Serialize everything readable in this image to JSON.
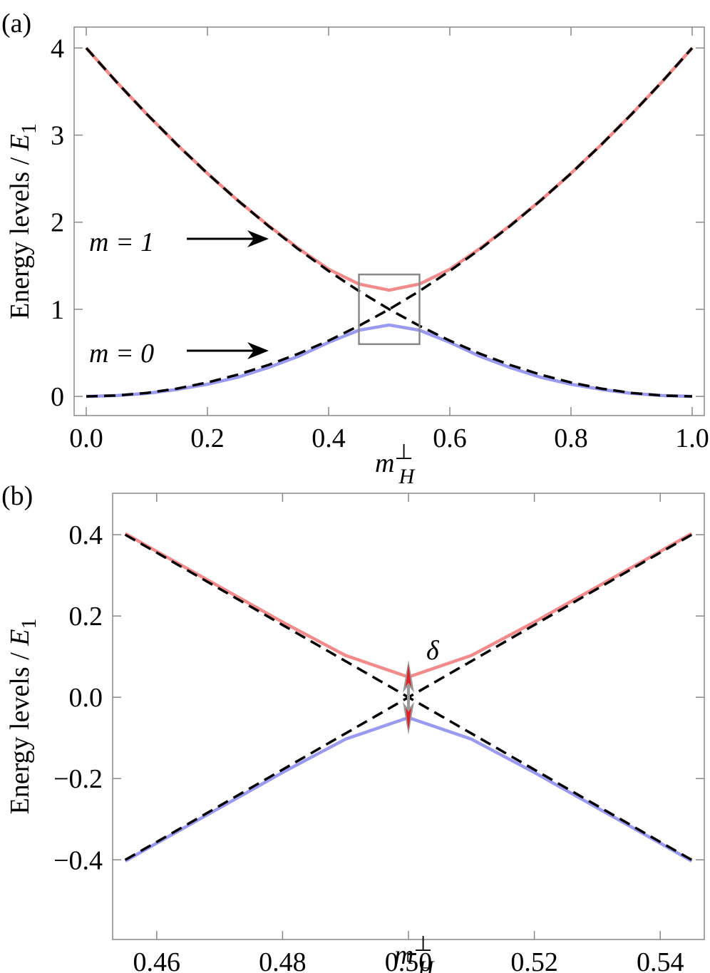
{
  "chart_data": [
    {
      "type": "line",
      "label": "(a)",
      "xlabel": {
        "main": "m",
        "sub": "H",
        "sup": "⊥"
      },
      "ylabel": {
        "main": "Energy levels / ",
        "var": "E",
        "sub": "1"
      },
      "x": [
        0,
        0.05,
        0.1,
        0.15,
        0.2,
        0.25,
        0.3,
        0.35,
        0.4,
        0.45,
        0.5,
        0.55,
        0.6,
        0.65,
        0.7,
        0.75,
        0.8,
        0.85,
        0.9,
        0.95,
        1
      ],
      "series": [
        {
          "color": "#f28b8b",
          "values": [
            4,
            3.61,
            3.24,
            2.89,
            2.56,
            2.25,
            1.965,
            1.7,
            1.46,
            1.29,
            1.22,
            1.29,
            1.46,
            1.7,
            1.965,
            2.25,
            2.56,
            2.89,
            3.24,
            3.61,
            4
          ]
        },
        {
          "color": "#9a9af0",
          "values": [
            0,
            0.01,
            0.035,
            0.08,
            0.14,
            0.22,
            0.33,
            0.46,
            0.62,
            0.76,
            0.82,
            0.76,
            0.62,
            0.46,
            0.33,
            0.22,
            0.14,
            0.08,
            0.035,
            0.01,
            0
          ]
        },
        {
          "color": "#000000",
          "dash": true,
          "values": [
            4,
            3.61,
            3.24,
            2.89,
            2.56,
            2.25,
            1.96,
            1.69,
            1.44,
            1.21,
            1,
            0.81,
            0.64,
            0.49,
            0.36,
            0.25,
            0.16,
            0.09,
            0.04,
            0.01,
            0
          ]
        },
        {
          "color": "#000000",
          "dash": true,
          "values": [
            0,
            0.01,
            0.04,
            0.09,
            0.16,
            0.25,
            0.36,
            0.49,
            0.64,
            0.81,
            1,
            1.21,
            1.44,
            1.69,
            1.96,
            2.25,
            2.56,
            2.89,
            3.24,
            3.61,
            4
          ]
        }
      ],
      "xlim": [
        -0.02,
        1.02
      ],
      "ylim": [
        -0.22,
        4.24
      ],
      "xticks": [
        {
          "value": 0,
          "label": "0.0"
        },
        0.2,
        0.4,
        0.6,
        0.8,
        {
          "value": 1,
          "label": "1.0"
        }
      ],
      "yticks": [
        0,
        1,
        2,
        3,
        4
      ],
      "inset": {
        "xlim": [
          0.45,
          0.55
        ],
        "ylim": [
          0.6,
          1.4
        ]
      },
      "annotations": [
        "m = 1",
        "m = 0"
      ]
    },
    {
      "type": "line",
      "label": "(b)",
      "xlabel": {
        "main": "m",
        "sub": "H",
        "sup": "⊥"
      },
      "ylabel": {
        "main": "Energy levels / ",
        "var": "E",
        "sub": "1"
      },
      "x": [
        0.455,
        0.46,
        0.47,
        0.48,
        0.49,
        0.5,
        0.51,
        0.52,
        0.53,
        0.54,
        0.545
      ],
      "series": [
        {
          "color": "#f28b8b",
          "values": [
            0.403,
            0.359,
            0.272,
            0.185,
            0.103,
            0.05,
            0.103,
            0.185,
            0.272,
            0.359,
            0.403
          ]
        },
        {
          "color": "#9a9af0",
          "values": [
            -0.403,
            -0.359,
            -0.272,
            -0.185,
            -0.103,
            -0.05,
            -0.103,
            -0.185,
            -0.272,
            -0.359,
            -0.403
          ]
        },
        {
          "color": "#000000",
          "dash": true,
          "values": [
            0.4,
            0.356,
            0.267,
            0.178,
            0.089,
            0,
            -0.089,
            -0.178,
            -0.267,
            -0.356,
            -0.4
          ]
        },
        {
          "color": "#000000",
          "dash": true,
          "values": [
            -0.4,
            -0.356,
            -0.267,
            -0.178,
            -0.089,
            0,
            0.089,
            0.178,
            0.267,
            0.356,
            0.4
          ]
        }
      ],
      "xlim": [
        0.453,
        0.547
      ],
      "ylim": [
        -0.596,
        0.502
      ],
      "xticks": [
        0.46,
        0.48,
        {
          "value": 0.5,
          "label": "0.50"
        },
        0.52,
        0.54
      ],
      "yticks": [
        {
          "value": -0.4,
          "label": "−0.4"
        },
        {
          "value": -0.2,
          "label": "−0.2"
        },
        {
          "value": 0,
          "label": "0.0"
        },
        0.2,
        0.4
      ],
      "annotations": [
        "δ"
      ]
    }
  ]
}
